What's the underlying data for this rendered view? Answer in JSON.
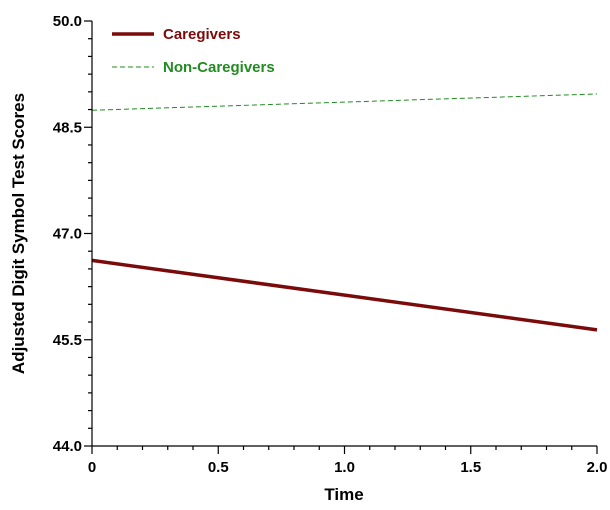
{
  "chart_data": {
    "type": "line",
    "xlabel": "Time",
    "ylabel": "Adjusted Digit Symbol Test Scores",
    "xlim": [
      0,
      2
    ],
    "ylim": [
      44,
      50
    ],
    "x_ticks": [
      0,
      0.5,
      1,
      1.5,
      2
    ],
    "x_tick_labels": [
      "0",
      "0.5",
      "1.0",
      "1.5",
      "2.0"
    ],
    "y_ticks": [
      44,
      45.5,
      47,
      48.5,
      50
    ],
    "y_tick_labels": [
      "44.0",
      "45.5",
      "47.0",
      "48.5",
      "50.0"
    ],
    "grid": false,
    "legend_position": "top-left",
    "series": [
      {
        "name": "Caregivers",
        "x": [
          0,
          2
        ],
        "y": [
          46.62,
          45.64
        ],
        "color": "#7b0a0a",
        "style": "solid"
      },
      {
        "name": "Non-Caregivers",
        "x": [
          0,
          2
        ],
        "y": [
          48.74,
          48.97
        ],
        "color": "#228b22",
        "style": "dashed"
      }
    ]
  }
}
